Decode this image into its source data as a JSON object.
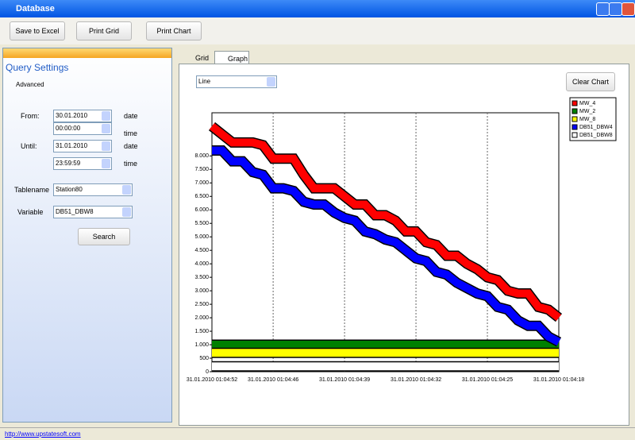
{
  "window": {
    "title": "Database"
  },
  "toolbar": {
    "buttons": [
      "Save to Excel",
      "Print Grid",
      "Print Chart"
    ]
  },
  "query": {
    "title": "Query Settings",
    "advanced": "Advanced",
    "from_label": "From:",
    "from_date": "30.01.2010",
    "date_label_1": "date",
    "from_time": "00:00:00",
    "time_label_1": "time",
    "until_label": "Until:",
    "until_date": "31.01.2010",
    "date_label_2": "date",
    "until_time": "23:59:59",
    "time_label_2": "time",
    "tablename_label": "Tablename",
    "tablename": "Station80",
    "variable_label": "Variable",
    "variable": "DB51_DBW8",
    "search": "Search"
  },
  "tabs": [
    "Grid",
    "Graph"
  ],
  "chart_type_select": "Line",
  "clear_button": "Clear Chart",
  "status_link": "http://www.upstatesoft.com",
  "chart_data": {
    "type": "line",
    "grid": true,
    "categories": [
      "31.01.2010 01:04:52",
      null,
      null,
      null,
      null,
      null,
      "31.01.2010 01:04:46",
      null,
      null,
      null,
      null,
      null,
      null,
      "31.01.2010 01:04:39",
      null,
      null,
      null,
      null,
      null,
      null,
      "31.01.2010 01:04:32",
      null,
      null,
      null,
      null,
      null,
      null,
      "31.01.2010 01:04:25",
      null,
      null,
      null,
      null,
      null,
      null,
      "31.01.2010 01:04:18"
    ],
    "series": [
      {
        "name": "MW_4",
        "color": "#ff0000",
        "values": [
          9100,
          8800,
          8500,
          8500,
          8500,
          8400,
          7900,
          7900,
          7900,
          7300,
          6800,
          6800,
          6800,
          6500,
          6200,
          6200,
          5800,
          5800,
          5600,
          5200,
          5200,
          4800,
          4700,
          4300,
          4300,
          4000,
          3800,
          3500,
          3400,
          3000,
          2900,
          2900,
          2400,
          2300,
          2000
        ]
      },
      {
        "name": "MW_2",
        "color": "#008000",
        "values": [
          1000,
          1000,
          1000,
          1000,
          1000,
          1000,
          1000,
          1000,
          1000,
          1000,
          1000,
          1000,
          1000,
          1000,
          1000,
          1000,
          1000,
          1000,
          1000,
          1000,
          1000,
          1000,
          1000,
          1000,
          1000,
          1000,
          1000,
          1000,
          1000,
          1000,
          1000,
          1000,
          1000,
          1000,
          1000
        ]
      },
      {
        "name": "MW_8",
        "color": "#ffff00",
        "values": [
          700,
          700,
          700,
          700,
          700,
          700,
          700,
          700,
          700,
          700,
          700,
          700,
          700,
          700,
          700,
          700,
          700,
          700,
          700,
          700,
          700,
          700,
          700,
          700,
          700,
          700,
          700,
          700,
          700,
          700,
          700,
          700,
          700,
          700,
          700
        ]
      },
      {
        "name": "DB51_DBW4",
        "color": "#0000ff",
        "values": [
          8200,
          8200,
          7800,
          7800,
          7400,
          7300,
          6800,
          6800,
          6700,
          6300,
          6200,
          6200,
          5900,
          5700,
          5600,
          5200,
          5100,
          4900,
          4800,
          4500,
          4200,
          4100,
          3700,
          3600,
          3300,
          3100,
          2900,
          2800,
          2400,
          2300,
          1900,
          1700,
          1700,
          1300,
          1100
        ]
      },
      {
        "name": "DB51_DBW8",
        "color": "#ffffff",
        "values": [
          200,
          200,
          200,
          200,
          200,
          200,
          200,
          200,
          200,
          200,
          200,
          200,
          200,
          200,
          200,
          200,
          200,
          200,
          200,
          200,
          200,
          200,
          200,
          200,
          200,
          200,
          200,
          200,
          200,
          200,
          200,
          200,
          200,
          200,
          200
        ]
      }
    ],
    "ylim": [
      0,
      9600
    ],
    "yticks": [
      0,
      500,
      {
        "value": 1000,
        "label": "1.000"
      },
      {
        "value": 1500,
        "label": "1.500"
      },
      {
        "value": 2000,
        "label": "2.000"
      },
      {
        "value": 2500,
        "label": "2.500"
      },
      {
        "value": 3000,
        "label": "3.000"
      },
      {
        "value": 3500,
        "label": "3.500"
      },
      {
        "value": 4000,
        "label": "4.000"
      },
      {
        "value": 4500,
        "label": "4.500"
      },
      {
        "value": 5000,
        "label": "5.000"
      },
      {
        "value": 5500,
        "label": "5.500"
      },
      {
        "value": 6000,
        "label": "6.000"
      },
      {
        "value": 6500,
        "label": "6.500"
      },
      {
        "value": 7000,
        "label": "7.000"
      },
      {
        "value": 7500,
        "label": "7.500"
      },
      {
        "value": 8000,
        "label": "8.000"
      }
    ],
    "legend": "top-right"
  }
}
